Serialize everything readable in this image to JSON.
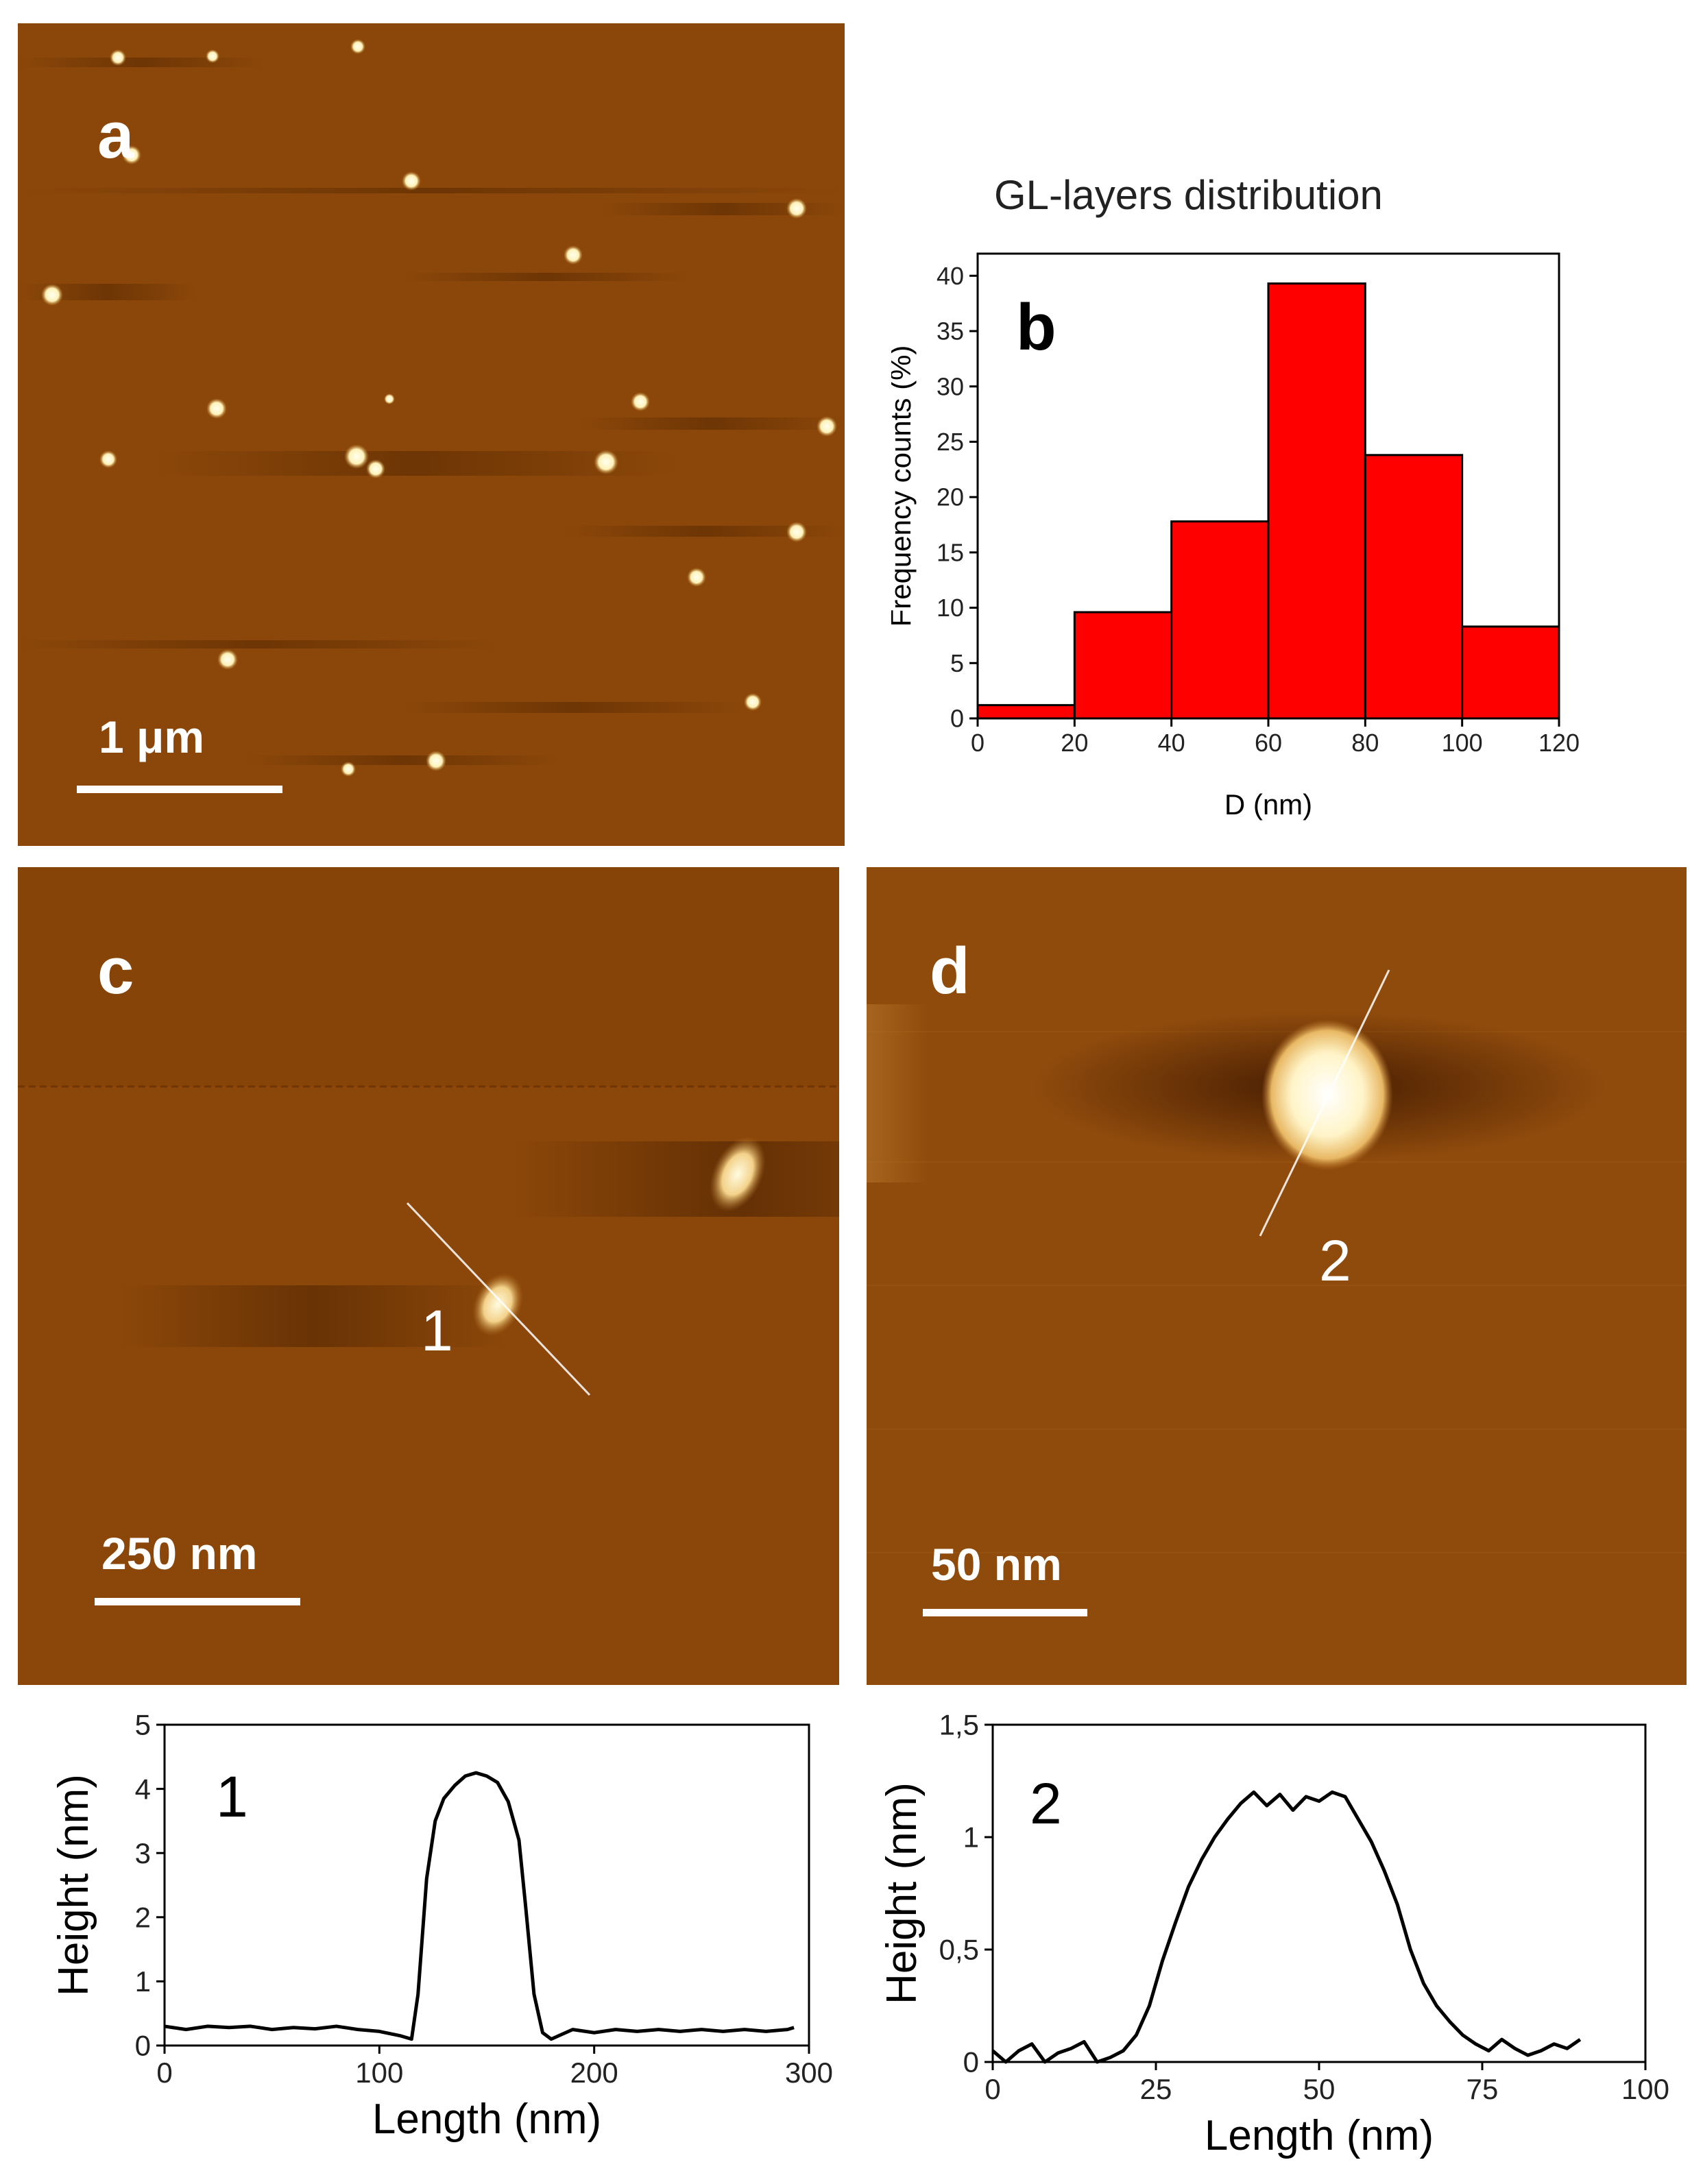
{
  "panel_a": {
    "label": "a",
    "scale_label": "1 μm"
  },
  "panel_c": {
    "label": "c",
    "scale_label": "250 nm",
    "profile_marker": "1"
  },
  "panel_d": {
    "label": "d",
    "scale_label": "50 nm",
    "profile_marker": "2"
  },
  "colors": {
    "afm_background": "#8b4709",
    "histogram_bar": "#ff0000",
    "profile_line": "#000000"
  },
  "chart_data": [
    {
      "id": "b",
      "type": "bar",
      "title": "GL-layers distribution",
      "panel_label": "b",
      "xlabel": "D (nm)",
      "ylabel": "Frequency counts (%)",
      "bin_edges": [
        0,
        20,
        40,
        60,
        80,
        100,
        120
      ],
      "values": [
        1.2,
        9.6,
        17.8,
        39.3,
        23.8,
        8.3
      ],
      "xlim": [
        0,
        120
      ],
      "ylim": [
        0,
        42
      ],
      "xticks": [
        0,
        20,
        40,
        60,
        80,
        100,
        120
      ],
      "yticks": [
        0,
        5,
        10,
        15,
        20,
        25,
        30,
        35,
        40
      ],
      "grid": false
    },
    {
      "id": "profile1",
      "type": "line",
      "panel_label": "1",
      "xlabel": "Length (nm)",
      "ylabel": "Height (nm)",
      "xlim": [
        0,
        300
      ],
      "ylim": [
        0,
        5
      ],
      "xticks": [
        0,
        100,
        200,
        300
      ],
      "yticks": [
        0,
        1,
        2,
        3,
        4,
        5
      ],
      "x": [
        0,
        10,
        20,
        30,
        40,
        50,
        60,
        70,
        80,
        90,
        100,
        110,
        115,
        118,
        122,
        126,
        130,
        135,
        140,
        145,
        150,
        155,
        160,
        165,
        168,
        172,
        176,
        180,
        190,
        200,
        210,
        220,
        230,
        240,
        250,
        260,
        270,
        280,
        290,
        293
      ],
      "y": [
        0.3,
        0.25,
        0.3,
        0.28,
        0.3,
        0.25,
        0.28,
        0.26,
        0.3,
        0.25,
        0.22,
        0.15,
        0.1,
        0.8,
        2.6,
        3.5,
        3.85,
        4.05,
        4.2,
        4.25,
        4.2,
        4.1,
        3.8,
        3.2,
        2.2,
        0.8,
        0.2,
        0.1,
        0.25,
        0.2,
        0.25,
        0.22,
        0.25,
        0.22,
        0.25,
        0.22,
        0.25,
        0.22,
        0.25,
        0.28
      ],
      "grid": false
    },
    {
      "id": "profile2",
      "type": "line",
      "panel_label": "2",
      "xlabel": "Length (nm)",
      "ylabel": "Height (nm)",
      "xlim": [
        0,
        100
      ],
      "ylim": [
        0,
        1.5
      ],
      "xticks": [
        0,
        25,
        50,
        75,
        100
      ],
      "ytick_labels": [
        "0",
        "0,5",
        "1",
        "1,5"
      ],
      "yticks": [
        0,
        0.5,
        1,
        1.5
      ],
      "x": [
        0,
        2,
        4,
        6,
        8,
        10,
        12,
        14,
        16,
        18,
        20,
        22,
        24,
        26,
        28,
        30,
        32,
        34,
        36,
        38,
        40,
        42,
        44,
        46,
        48,
        50,
        52,
        54,
        56,
        58,
        60,
        62,
        64,
        66,
        68,
        70,
        72,
        74,
        76,
        78,
        80,
        82,
        84,
        86,
        88,
        90
      ],
      "y": [
        0.05,
        0.0,
        0.05,
        0.08,
        0.0,
        0.04,
        0.06,
        0.09,
        0.0,
        0.02,
        0.05,
        0.12,
        0.25,
        0.45,
        0.62,
        0.78,
        0.9,
        1.0,
        1.08,
        1.15,
        1.2,
        1.14,
        1.19,
        1.12,
        1.18,
        1.16,
        1.2,
        1.18,
        1.08,
        0.98,
        0.85,
        0.7,
        0.5,
        0.35,
        0.25,
        0.18,
        0.12,
        0.08,
        0.05,
        0.1,
        0.06,
        0.03,
        0.05,
        0.08,
        0.06,
        0.1
      ],
      "grid": false
    }
  ]
}
